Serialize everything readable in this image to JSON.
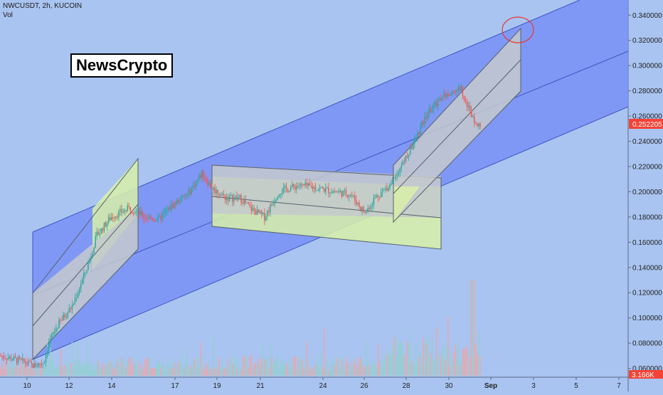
{
  "header": {
    "symbol_line": "NWCUSDT, 2h, KUCOIN",
    "vol_label": "Vol"
  },
  "watermark": "NewsCrypto",
  "colors": {
    "background": "#a9c4f0",
    "channel_fill": "#7b93f5",
    "grey_box": "#c4c9cc",
    "yellow_box": "#d8f0a8",
    "bull": "#26a69a",
    "bear": "#ef5350",
    "price_tag": "#f44336",
    "circle": "#e53935"
  },
  "chart_data": {
    "type": "candlestick",
    "symbol": "NWCUSDT",
    "timeframe": "2h",
    "exchange": "KUCOIN",
    "y_axis": {
      "ticks": [
        "0.340000",
        "0.320000",
        "0.300000",
        "0.280000",
        "0.260000",
        "0.240000",
        "0.220000",
        "0.200000",
        "0.180000",
        "0.160000",
        "0.140000",
        "0.120000",
        "0.100000",
        "0.080000",
        "0.060000"
      ],
      "ylim": [
        0.053,
        0.352
      ]
    },
    "x_axis": {
      "ticks": [
        "10",
        "12",
        "14",
        "17",
        "19",
        "21",
        "24",
        "26",
        "28",
        "30",
        "Sep",
        "3",
        "5",
        "7"
      ]
    },
    "last_price": "0.252205",
    "volume_label": "3.166K",
    "price_path": [
      [
        0,
        0.07
      ],
      [
        0.04,
        0.066
      ],
      [
        0.07,
        0.062
      ],
      [
        0.09,
        0.065
      ],
      [
        0.1,
        0.08
      ],
      [
        0.12,
        0.095
      ],
      [
        0.15,
        0.11
      ],
      [
        0.18,
        0.14
      ],
      [
        0.2,
        0.165
      ],
      [
        0.23,
        0.18
      ],
      [
        0.27,
        0.187
      ],
      [
        0.3,
        0.18
      ],
      [
        0.33,
        0.178
      ],
      [
        0.36,
        0.19
      ],
      [
        0.39,
        0.198
      ],
      [
        0.42,
        0.215
      ],
      [
        0.44,
        0.203
      ],
      [
        0.47,
        0.195
      ],
      [
        0.5,
        0.195
      ],
      [
        0.52,
        0.187
      ],
      [
        0.55,
        0.18
      ],
      [
        0.58,
        0.2
      ],
      [
        0.62,
        0.205
      ],
      [
        0.66,
        0.203
      ],
      [
        0.7,
        0.2
      ],
      [
        0.73,
        0.198
      ],
      [
        0.76,
        0.183
      ],
      [
        0.78,
        0.195
      ],
      [
        0.81,
        0.205
      ],
      [
        0.85,
        0.23
      ],
      [
        0.89,
        0.262
      ],
      [
        0.92,
        0.275
      ],
      [
        0.96,
        0.282
      ],
      [
        0.98,
        0.262
      ],
      [
        1.0,
        0.252
      ]
    ],
    "volume_spike_index": 0.985
  },
  "annotations": {
    "channel_main": "ascending channel",
    "channel_flag_1": "rising channel",
    "channel_range": "consolidation range",
    "channel_flag_2": "rising channel",
    "target_marker": "target circle"
  }
}
